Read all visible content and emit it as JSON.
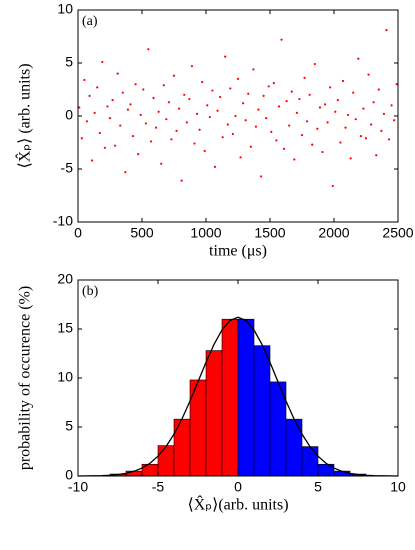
{
  "chart_data": [
    {
      "type": "scatter",
      "panel_label": "(a)",
      "xlabel": "time (μs)",
      "ylabel": "⟨X̂ₚ⟩ (arb. units)",
      "color": "#ff0000",
      "xlim": [
        0,
        2500
      ],
      "ylim": [
        -10,
        10
      ],
      "xticks": [
        0,
        500,
        1000,
        1500,
        2000,
        2500
      ],
      "yticks": [
        -10,
        -5,
        0,
        5,
        10
      ],
      "x": [
        10,
        30,
        50,
        70,
        90,
        110,
        130,
        150,
        170,
        190,
        210,
        230,
        250,
        270,
        290,
        310,
        330,
        350,
        370,
        390,
        410,
        430,
        450,
        470,
        490,
        510,
        530,
        550,
        570,
        590,
        610,
        630,
        650,
        670,
        690,
        710,
        730,
        750,
        770,
        790,
        810,
        830,
        850,
        870,
        890,
        910,
        930,
        950,
        970,
        990,
        1010,
        1030,
        1050,
        1070,
        1090,
        1110,
        1130,
        1150,
        1170,
        1190,
        1210,
        1230,
        1250,
        1270,
        1290,
        1310,
        1330,
        1350,
        1370,
        1390,
        1410,
        1430,
        1450,
        1470,
        1490,
        1510,
        1530,
        1550,
        1570,
        1590,
        1610,
        1630,
        1650,
        1670,
        1690,
        1710,
        1730,
        1750,
        1770,
        1790,
        1810,
        1830,
        1850,
        1870,
        1890,
        1910,
        1930,
        1950,
        1970,
        1990,
        2010,
        2030,
        2050,
        2070,
        2090,
        2110,
        2130,
        2150,
        2170,
        2190,
        2210,
        2230,
        2250,
        2270,
        2290,
        2310,
        2330,
        2350,
        2370,
        2390,
        2410,
        2430,
        2450,
        2470,
        2490
      ],
      "values": [
        0.8,
        -2.1,
        3.4,
        -0.5,
        1.9,
        -4.2,
        0.3,
        2.7,
        -1.6,
        5.1,
        -3.0,
        0.9,
        -0.2,
        1.5,
        -2.8,
        4.0,
        -0.9,
        2.2,
        -5.3,
        0.6,
        1.1,
        -1.9,
        3.0,
        -3.6,
        0.1,
        2.5,
        -0.7,
        6.3,
        -2.4,
        1.7,
        -1.1,
        0.4,
        -4.5,
        2.9,
        -0.3,
        1.3,
        -2.2,
        3.8,
        -1.4,
        0.7,
        -6.1,
        2.0,
        -0.6,
        1.6,
        4.7,
        -2.6,
        0.2,
        -1.3,
        3.2,
        -3.3,
        1.0,
        -0.1,
        2.4,
        -4.8,
        0.5,
        1.8,
        -2.0,
        5.6,
        -0.8,
        2.6,
        -1.7,
        0.0,
        3.5,
        -3.9,
        1.2,
        -0.4,
        2.1,
        -2.9,
        4.4,
        -1.0,
        0.6,
        -5.7,
        1.9,
        -0.2,
        2.8,
        -1.5,
        3.1,
        -2.3,
        0.9,
        7.2,
        -3.1,
        1.4,
        -0.9,
        2.3,
        -4.1,
        0.3,
        1.6,
        -1.8,
        3.6,
        -0.5,
        2.0,
        -2.7,
        4.9,
        -1.2,
        0.8,
        -3.4,
        1.1,
        -0.6,
        2.7,
        -6.6,
        0.4,
        1.5,
        -2.5,
        3.3,
        -1.1,
        0.1,
        -4.0,
        2.2,
        -0.3,
        5.4,
        -1.9,
        0.7,
        -2.1,
        3.9,
        -0.8,
        1.3,
        -3.7,
        2.5,
        -1.4,
        0.2,
        8.1,
        -2.2,
        1.0,
        -0.4,
        3.0
      ]
    },
    {
      "type": "histogram",
      "panel_label": "(b)",
      "xlabel": "⟨X̂ₚ⟩(arb. units)",
      "ylabel": "probability of occurence (%)",
      "xlim": [
        -10,
        10
      ],
      "ylim": [
        0,
        20
      ],
      "xticks": [
        -10,
        -5,
        0,
        5,
        10
      ],
      "yticks": [
        0,
        5,
        10,
        15,
        20
      ],
      "bins": [
        -8,
        -7,
        -6,
        -5,
        -4,
        -3,
        -2,
        -1,
        0,
        1,
        2,
        3,
        4,
        5,
        6,
        7,
        8
      ],
      "values": [
        0.2,
        0.5,
        1.2,
        3.1,
        5.8,
        9.8,
        12.8,
        16.0,
        16.0,
        13.3,
        9.6,
        5.8,
        3.0,
        1.2,
        0.5,
        0.2
      ],
      "colors": [
        "#ff0000",
        "#ff0000",
        "#ff0000",
        "#ff0000",
        "#ff0000",
        "#ff0000",
        "#ff0000",
        "#ff0000",
        "#0000ff",
        "#0000ff",
        "#0000ff",
        "#0000ff",
        "#0000ff",
        "#0000ff",
        "#0000ff",
        "#0000ff"
      ],
      "fit": {
        "color": "#000000",
        "x": [
          -10,
          -9.5,
          -9,
          -8.5,
          -8,
          -7.5,
          -7,
          -6.5,
          -6,
          -5.5,
          -5,
          -4.5,
          -4,
          -3.5,
          -3,
          -2.5,
          -2,
          -1.5,
          -1,
          -0.5,
          0,
          0.5,
          1,
          1.5,
          2,
          2.5,
          3,
          3.5,
          4,
          4.5,
          5,
          5.5,
          6,
          6.5,
          7,
          7.5,
          8,
          8.5,
          9,
          9.5,
          10
        ],
        "y": [
          0.0,
          0.01,
          0.02,
          0.04,
          0.08,
          0.15,
          0.27,
          0.48,
          0.81,
          1.3,
          2.02,
          3.0,
          4.27,
          5.83,
          7.65,
          9.62,
          11.6,
          13.43,
          14.9,
          15.86,
          16.2,
          15.86,
          14.9,
          13.43,
          11.6,
          9.62,
          7.65,
          5.83,
          4.27,
          3.0,
          2.02,
          1.3,
          0.81,
          0.48,
          0.27,
          0.15,
          0.08,
          0.04,
          0.02,
          0.01,
          0.0
        ]
      }
    }
  ]
}
